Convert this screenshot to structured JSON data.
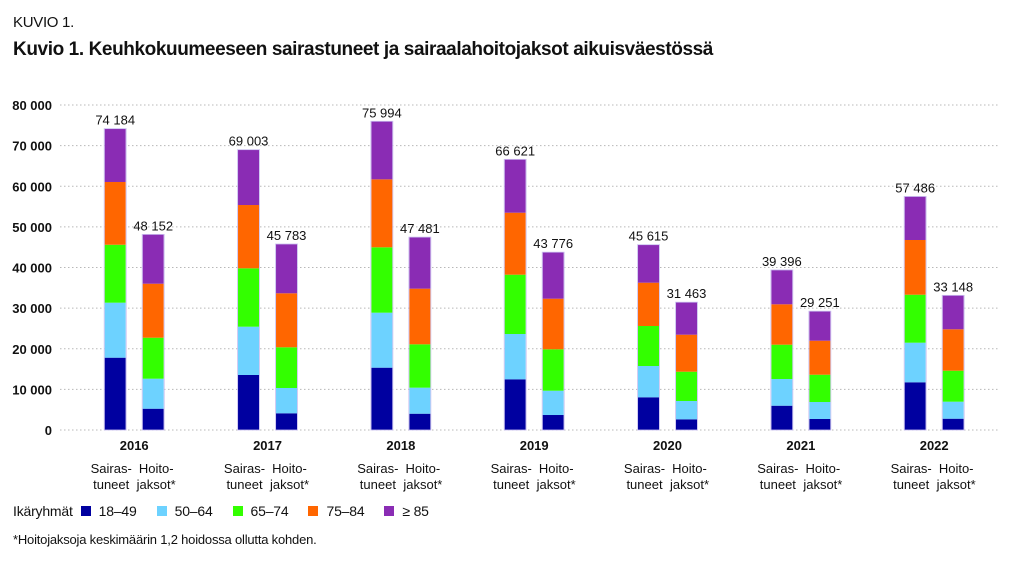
{
  "header": {
    "kicker": "KUVIO 1.",
    "title": "Kuvio 1. Keuhkokuumeeseen sairastuneet ja sairaalahoitojaksot aikuisväestössä"
  },
  "legend": {
    "title": "Ikäryhmät",
    "items": [
      {
        "label": "18–49",
        "color": "#0000a0"
      },
      {
        "label": "50–64",
        "color": "#6dd2ff"
      },
      {
        "label": "65–74",
        "color": "#33ff00"
      },
      {
        "label": "75–84",
        "color": "#ff6600"
      },
      {
        "label": "≥ 85",
        "color": "#8a2cb4"
      }
    ]
  },
  "footnote": "*Hoitojaksoja keskimäärin 1,2 hoidossa ollutta kohden.",
  "chart_data": {
    "type": "bar",
    "stacked": true,
    "title": "Kuvio 1. Keuhkokuumeeseen sairastuneet ja sairaalahoitojaksot aikuisväestössä",
    "xlabel": "",
    "ylabel": "",
    "ylim": [
      0,
      80000
    ],
    "yticks": [
      0,
      10000,
      20000,
      30000,
      40000,
      50000,
      60000,
      70000,
      80000
    ],
    "ytick_labels": [
      "0",
      "10 000",
      "20 000",
      "30 000",
      "40 000",
      "50 000",
      "60 000",
      "70 000",
      "80 000"
    ],
    "grid": "horizontal-dotted",
    "legend_position": "bottom-left",
    "categories": [
      "2016",
      "2017",
      "2018",
      "2019",
      "2020",
      "2021",
      "2022"
    ],
    "bar_labels": [
      [
        "Sairas-",
        "tuneet"
      ],
      [
        "Hoito-",
        "jaksot*"
      ]
    ],
    "series_names": [
      "18–49",
      "50–64",
      "65–74",
      "75–84",
      "≥ 85"
    ],
    "groups": [
      {
        "year": "2016",
        "bars": [
          {
            "name": "Sairastuneet",
            "total": 74184,
            "total_label": "74 184",
            "values": [
              17800,
              13540,
              14260,
              15450,
              13134
            ]
          },
          {
            "name": "Hoitojaksot",
            "total": 48152,
            "total_label": "48 152",
            "values": [
              5240,
              7390,
              10090,
              13290,
              12142
            ]
          }
        ]
      },
      {
        "year": "2017",
        "bars": [
          {
            "name": "Sairastuneet",
            "total": 69003,
            "total_label": "69 003",
            "values": [
              13540,
              11890,
              14370,
              15580,
              13623
            ]
          },
          {
            "name": "Hoitojaksot",
            "total": 45783,
            "total_label": "45 783",
            "values": [
              4110,
              6230,
              10020,
              13290,
              12133
            ]
          }
        ]
      },
      {
        "year": "2018",
        "bars": [
          {
            "name": "Sairastuneet",
            "total": 75994,
            "total_label": "75 994",
            "values": [
              15340,
              13540,
              16090,
              16730,
              14294
            ]
          },
          {
            "name": "Hoitojaksot",
            "total": 47481,
            "total_label": "47 481",
            "values": [
              4010,
              6410,
              10670,
              13700,
              12691
            ]
          }
        ]
      },
      {
        "year": "2019",
        "bars": [
          {
            "name": "Sairastuneet",
            "total": 66621,
            "total_label": "66 621",
            "values": [
              12480,
              11150,
              14600,
              15260,
              13131
            ]
          },
          {
            "name": "Hoitojaksot",
            "total": 43776,
            "total_label": "43 776",
            "values": [
              3690,
              5980,
              10190,
              12460,
              11456
            ]
          }
        ]
      },
      {
        "year": "2020",
        "bars": [
          {
            "name": "Sairastuneet",
            "total": 45615,
            "total_label": "45 615",
            "values": [
              8050,
              7700,
              9850,
              10660,
              9355
            ]
          },
          {
            "name": "Hoitojaksot",
            "total": 31463,
            "total_label": "31 463",
            "values": [
              2630,
              4510,
              7210,
              9110,
              8003
            ]
          }
        ]
      },
      {
        "year": "2021",
        "bars": [
          {
            "name": "Sairastuneet",
            "total": 39396,
            "total_label": "39 396",
            "values": [
              5980,
              6570,
              8450,
              9940,
              8456
            ]
          },
          {
            "name": "Hoitojaksot",
            "total": 29251,
            "total_label": "29 251",
            "values": [
              2710,
              4180,
              6720,
              8370,
              7271
            ]
          }
        ]
      },
      {
        "year": "2022",
        "bars": [
          {
            "name": "Sairastuneet",
            "total": 57486,
            "total_label": "57 486",
            "values": [
              11740,
              9750,
              11810,
              13470,
              10716
            ]
          },
          {
            "name": "Hoitojaksot",
            "total": 33148,
            "total_label": "33 148",
            "values": [
              2780,
              4190,
              7630,
              10190,
              8358
            ]
          }
        ]
      }
    ]
  }
}
